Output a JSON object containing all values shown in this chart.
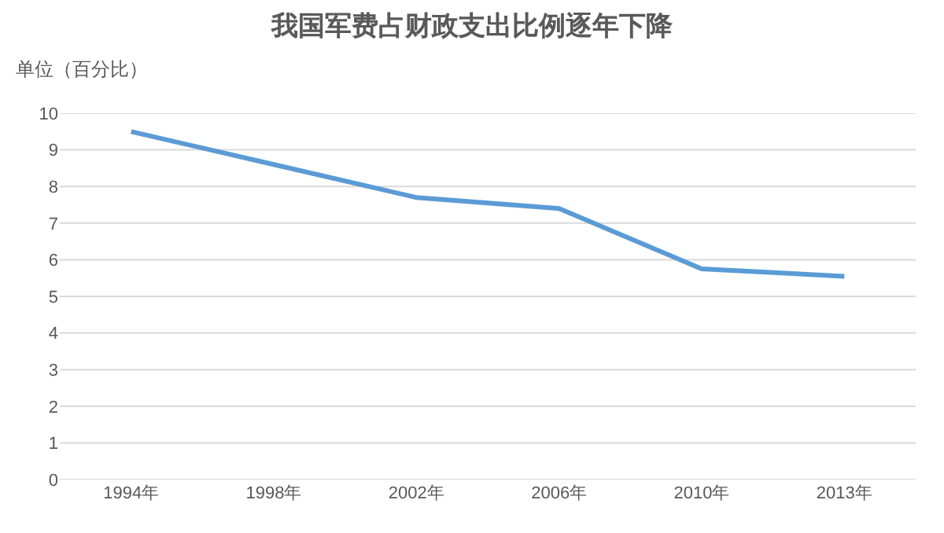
{
  "chart_data": {
    "type": "line",
    "title": "我国军费占财政支出比例逐年下降",
    "ylabel": "单位（百分比）",
    "categories": [
      "1994年",
      "1998年",
      "2002年",
      "2006年",
      "2010年",
      "2013年"
    ],
    "series": [
      {
        "color": "#5b9bd5",
        "values": [
          9.5,
          8.6,
          7.7,
          7.4,
          5.75,
          5.55
        ]
      }
    ],
    "ylim": [
      0,
      10
    ],
    "yticks": [
      0,
      1,
      2,
      3,
      4,
      5,
      6,
      7,
      8,
      9,
      10
    ],
    "grid": "y",
    "marker": "none",
    "line_style": "solid"
  }
}
